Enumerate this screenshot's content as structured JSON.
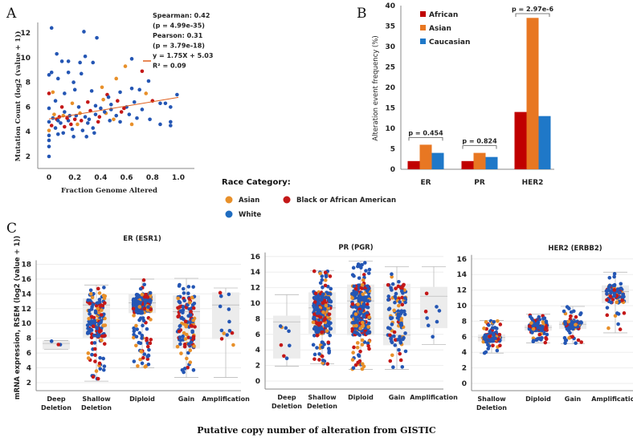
{
  "panels": {
    "a": "A",
    "b": "B",
    "c": "C"
  },
  "colors": {
    "white": "#2456b4",
    "asian": "#e8902a",
    "black": "#c41818",
    "bar_african": "#c00000",
    "bar_asian": "#e87722",
    "bar_caucasian": "#1f78c8",
    "regression": "#e0601e"
  },
  "legend": {
    "title": "Race Category:",
    "items": [
      {
        "label": "Asian",
        "color": "#e8902a"
      },
      {
        "label": "Black or African American",
        "color": "#c41818"
      },
      {
        "label": "White",
        "color": "#2456b4"
      }
    ]
  },
  "footer": "Putative copy number of  alteration from GISTIC",
  "chart_data": [
    {
      "type": "scatter",
      "xlabel": "Fraction Genome Altered",
      "ylabel": "Mutation Count  (log2 (value + 1))",
      "xlim": [
        0,
        1.0
      ],
      "ylim": [
        2,
        12
      ],
      "xticks": [
        "0",
        "0.2",
        "0.4",
        "0.6",
        "0.8",
        "1.0"
      ],
      "yticks": [
        "2",
        "4",
        "6",
        "8",
        "10",
        "12"
      ],
      "stats": [
        "Spearman: 0.42",
        "(p = 4.99e-35)",
        "Pearson: 0.31",
        "(p = 3.79e-18)",
        "y = 1.75X + 5.03",
        "R² = 0.09"
      ],
      "regression": {
        "slope": 1.75,
        "intercept": 5.03
      },
      "points": [
        [
          0.02,
          12.4,
          "W"
        ],
        [
          0.27,
          12.1,
          "W"
        ],
        [
          0.37,
          11.6,
          "W"
        ],
        [
          0.06,
          10.3,
          "W"
        ],
        [
          0.28,
          10.1,
          "W"
        ],
        [
          0.64,
          9.9,
          "W"
        ],
        [
          0.1,
          9.7,
          "W"
        ],
        [
          0.15,
          9.7,
          "W"
        ],
        [
          0.24,
          9.6,
          "W"
        ],
        [
          0.34,
          9.6,
          "W"
        ],
        [
          0.59,
          9.3,
          "A"
        ],
        [
          0.72,
          8.9,
          "B"
        ],
        [
          0.0,
          8.6,
          "W"
        ],
        [
          0.02,
          8.8,
          "W"
        ],
        [
          0.15,
          8.8,
          "W"
        ],
        [
          0.25,
          8.7,
          "W"
        ],
        [
          0.52,
          8.3,
          "A"
        ],
        [
          0.77,
          8.1,
          "W"
        ],
        [
          0.07,
          8.3,
          "W"
        ],
        [
          0.19,
          8.0,
          "W"
        ],
        [
          0.41,
          7.6,
          "A"
        ],
        [
          0.0,
          7.1,
          "B"
        ],
        [
          0.03,
          7.2,
          "A"
        ],
        [
          0.12,
          7.1,
          "W"
        ],
        [
          0.2,
          7.4,
          "W"
        ],
        [
          0.33,
          7.3,
          "W"
        ],
        [
          0.45,
          7.0,
          "B"
        ],
        [
          0.55,
          7.2,
          "W"
        ],
        [
          0.64,
          7.5,
          "W"
        ],
        [
          0.7,
          7.4,
          "W"
        ],
        [
          0.75,
          7.1,
          "A"
        ],
        [
          0.99,
          7.0,
          "W"
        ],
        [
          0.86,
          6.3,
          "W"
        ],
        [
          0.9,
          6.3,
          "W"
        ],
        [
          0.94,
          6.0,
          "W"
        ],
        [
          0.8,
          6.5,
          "B"
        ],
        [
          0.05,
          6.5,
          "W"
        ],
        [
          0.1,
          6.0,
          "B"
        ],
        [
          0.18,
          6.3,
          "A"
        ],
        [
          0.23,
          6.0,
          "W"
        ],
        [
          0.3,
          6.4,
          "B"
        ],
        [
          0.36,
          6.1,
          "W"
        ],
        [
          0.42,
          6.6,
          "A"
        ],
        [
          0.48,
          6.2,
          "W"
        ],
        [
          0.53,
          6.5,
          "B"
        ],
        [
          0.6,
          6.0,
          "W"
        ],
        [
          0.66,
          6.4,
          "W"
        ],
        [
          0.72,
          5.8,
          "W"
        ],
        [
          0.0,
          5.9,
          "W"
        ],
        [
          0.04,
          5.4,
          "A"
        ],
        [
          0.08,
          5.2,
          "B"
        ],
        [
          0.12,
          5.6,
          "W"
        ],
        [
          0.16,
          5.3,
          "W"
        ],
        [
          0.2,
          5.0,
          "B"
        ],
        [
          0.24,
          5.5,
          "A"
        ],
        [
          0.28,
          5.2,
          "W"
        ],
        [
          0.32,
          5.7,
          "B"
        ],
        [
          0.36,
          5.4,
          "W"
        ],
        [
          0.4,
          5.9,
          "W"
        ],
        [
          0.44,
          5.5,
          "A"
        ],
        [
          0.48,
          5.8,
          "W"
        ],
        [
          0.52,
          5.3,
          "W"
        ],
        [
          0.56,
          5.6,
          "B"
        ],
        [
          0.62,
          5.4,
          "W"
        ],
        [
          0.68,
          5.1,
          "W"
        ],
        [
          0.78,
          5.0,
          "W"
        ],
        [
          0.86,
          4.6,
          "W"
        ],
        [
          0.94,
          4.5,
          "W"
        ],
        [
          0.94,
          4.8,
          "W"
        ],
        [
          0.64,
          4.6,
          "A"
        ],
        [
          0.55,
          4.8,
          "W"
        ],
        [
          0.47,
          4.9,
          "W"
        ],
        [
          0.0,
          4.8,
          "W"
        ],
        [
          0.02,
          4.5,
          "B"
        ],
        [
          0.05,
          4.3,
          "W"
        ],
        [
          0.09,
          4.7,
          "W"
        ],
        [
          0.12,
          4.4,
          "B"
        ],
        [
          0.15,
          4.9,
          "W"
        ],
        [
          0.18,
          4.2,
          "W"
        ],
        [
          0.22,
          4.6,
          "A"
        ],
        [
          0.26,
          4.1,
          "W"
        ],
        [
          0.3,
          4.7,
          "W"
        ],
        [
          0.34,
          4.3,
          "W"
        ],
        [
          0.38,
          4.8,
          "B"
        ],
        [
          0.0,
          4.1,
          "A"
        ],
        [
          0.0,
          3.7,
          "W"
        ],
        [
          0.0,
          3.3,
          "W"
        ],
        [
          0.07,
          3.8,
          "W"
        ],
        [
          0.11,
          3.9,
          "W"
        ],
        [
          0.19,
          3.6,
          "W"
        ],
        [
          0.29,
          3.6,
          "W"
        ],
        [
          0.35,
          3.9,
          "W"
        ],
        [
          0.0,
          2.8,
          "W"
        ],
        [
          0.0,
          2.0,
          "W"
        ],
        [
          0.06,
          5.0,
          "B"
        ],
        [
          0.14,
          5.1,
          "B"
        ],
        [
          0.03,
          5.1,
          "W"
        ],
        [
          0.07,
          4.9,
          "W"
        ],
        [
          0.11,
          5.3,
          "A"
        ],
        [
          0.17,
          4.6,
          "B"
        ],
        [
          0.21,
          5.3,
          "W"
        ],
        [
          0.25,
          4.9,
          "B"
        ],
        [
          0.31,
          5.0,
          "W"
        ],
        [
          0.39,
          5.2,
          "B"
        ],
        [
          0.43,
          5.6,
          "W"
        ],
        [
          0.5,
          5.0,
          "A"
        ],
        [
          0.58,
          5.9,
          "B"
        ],
        [
          0.46,
          6.8,
          "W"
        ]
      ]
    },
    {
      "type": "bar",
      "ylabel": "Alteration event frequency (%)",
      "ylim": [
        0,
        40
      ],
      "yticks": [
        "0",
        "5",
        "10",
        "15",
        "20",
        "25",
        "30",
        "35",
        "40"
      ],
      "categories": [
        "ER",
        "PR",
        "HER2"
      ],
      "series": [
        {
          "name": "African",
          "values": [
            2,
            2,
            14
          ]
        },
        {
          "name": "Asian",
          "values": [
            6,
            4,
            37
          ]
        },
        {
          "name": "Caucasian",
          "values": [
            4,
            3,
            13
          ]
        }
      ],
      "annotations": [
        "p = 0.454",
        "p = 0.824",
        "p = 2.97e-6"
      ],
      "legend": "top-left"
    },
    {
      "type": "box",
      "title": "ER (ESR1)",
      "ylabel": "mRNA expression, RSEM  (log2 (value + 1))",
      "ylim": [
        2,
        18
      ],
      "yticks": [
        "2",
        "4",
        "6",
        "8",
        "10",
        "12",
        "14",
        "16",
        "18"
      ],
      "categories": [
        "Deep Deletion",
        "Shallow Deletion",
        "Diploid",
        "Gain",
        "Amplification"
      ],
      "boxes": [
        [
          6.5,
          6.5,
          7.3,
          7.7,
          7.7
        ],
        [
          2.2,
          8.1,
          12.5,
          13.4,
          15.2
        ],
        [
          4.0,
          11.4,
          12.8,
          14.0,
          16.0
        ],
        [
          2.7,
          6.6,
          11.6,
          13.8,
          16.1
        ],
        [
          2.7,
          7.9,
          12.5,
          14.2,
          14.8
        ]
      ]
    },
    {
      "type": "box",
      "title": "PR (PGR)",
      "ylim": [
        0,
        16
      ],
      "yticks": [
        "0",
        "2",
        "4",
        "6",
        "8",
        "10",
        "12",
        "14",
        "16"
      ],
      "categories": [
        "Deep Deletion",
        "Shallow Deletion",
        "Diploid",
        "Gain",
        "Amplification"
      ],
      "boxes": [
        [
          1.9,
          2.9,
          7.6,
          8.4,
          11.1
        ],
        [
          2.2,
          6.1,
          9.4,
          11.4,
          14.2
        ],
        [
          1.5,
          5.9,
          10.3,
          12.4,
          15.4
        ],
        [
          1.5,
          4.6,
          5.9,
          12.5,
          14.7
        ],
        [
          4.7,
          6.8,
          10.9,
          12.1,
          14.7
        ]
      ]
    },
    {
      "type": "box",
      "title": "HER2 (ERBB2)",
      "ylim": [
        0,
        16
      ],
      "yticks": [
        "0",
        "2",
        "4",
        "6",
        "8",
        "10",
        "12",
        "14",
        "16"
      ],
      "categories": [
        "Shallow Deletion",
        "Diploid",
        "Gain",
        "Amplification"
      ],
      "boxes": [
        [
          3.9,
          5.4,
          5.9,
          6.3,
          8.1
        ],
        [
          5.2,
          6.8,
          7.2,
          7.5,
          8.9
        ],
        [
          5.1,
          7.0,
          7.6,
          8.0,
          9.9
        ],
        [
          6.5,
          10.3,
          11.8,
          12.6,
          14.3
        ]
      ]
    }
  ]
}
